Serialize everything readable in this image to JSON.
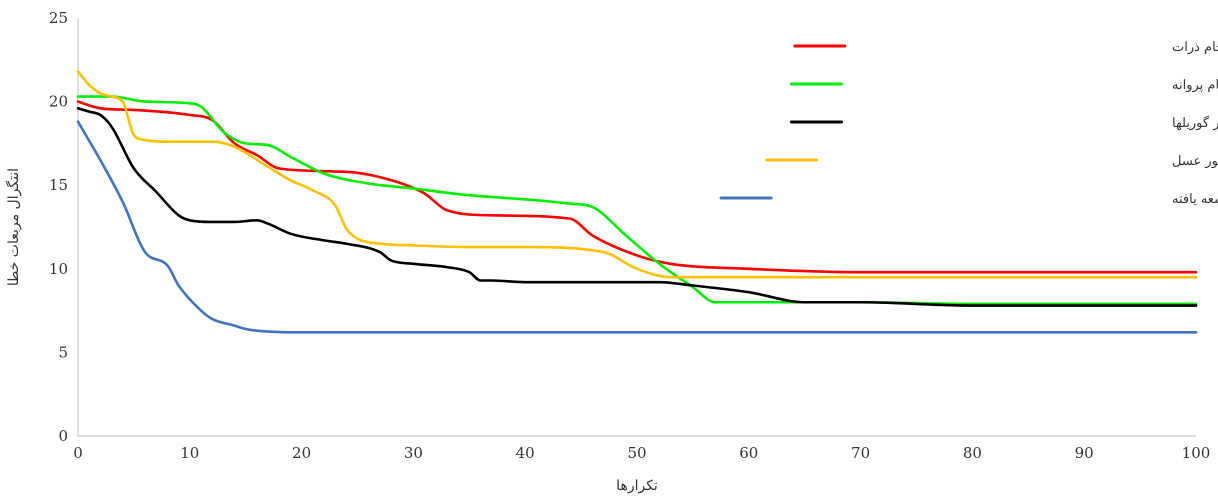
{
  "chart_data": {
    "type": "line",
    "title": "",
    "xlabel": "تکرارها",
    "ylabel": "انتگرال مربعات خطا",
    "xlim": [
      0,
      100
    ],
    "ylim": [
      0,
      25
    ],
    "xticks": [
      0,
      10,
      20,
      30,
      40,
      50,
      60,
      70,
      80,
      90,
      100
    ],
    "yticks": [
      0,
      5,
      10,
      15,
      20,
      25
    ],
    "grid": false,
    "legend_position": "top-right",
    "series": [
      {
        "name": "کنترل کننده  PD-FOPIDبهینه شده با الگوریتم ازدحام ذرات",
        "color": "#ff0000",
        "x": [
          0,
          2,
          5,
          10,
          12,
          14,
          16,
          18,
          24,
          28,
          31,
          33,
          37,
          44,
          46,
          50,
          53,
          60,
          70,
          80,
          90,
          100
        ],
        "y": [
          20.0,
          19.6,
          19.5,
          19.2,
          18.9,
          17.5,
          16.8,
          16.0,
          15.8,
          15.3,
          14.5,
          13.5,
          13.2,
          13.0,
          12.0,
          10.8,
          10.3,
          10.0,
          9.8,
          9.8,
          9.8,
          9.8
        ]
      },
      {
        "name": "کنترل کننده  PD-FOPIDبهینه شده با الگوریتم ازدحام پروانه",
        "color": "#00ee00",
        "x": [
          0,
          3,
          6,
          10,
          11,
          13,
          15,
          17,
          19,
          22,
          26,
          30,
          35,
          41,
          44,
          46,
          49,
          52,
          55,
          57,
          60,
          70,
          80,
          90,
          100
        ],
        "y": [
          20.3,
          20.3,
          20.0,
          19.9,
          19.7,
          18.2,
          17.5,
          17.4,
          16.7,
          15.7,
          15.1,
          14.8,
          14.4,
          14.1,
          13.9,
          13.7,
          12.0,
          10.3,
          8.9,
          8.0,
          8.0,
          8.0,
          7.9,
          7.9,
          7.9
        ]
      },
      {
        "name": "کنترل کننده  PD-FOPIDبهینه شده با الگوریتم لشکر گوریلها",
        "color": "#000000",
        "x": [
          0,
          1,
          2,
          3,
          5,
          7,
          9,
          10,
          12,
          14,
          16,
          17,
          19,
          22,
          24,
          27,
          28,
          30,
          33,
          35,
          36,
          37,
          40,
          45,
          52,
          55,
          60,
          65,
          70,
          80,
          90,
          100
        ],
        "y": [
          19.6,
          19.4,
          19.2,
          18.5,
          16.0,
          14.6,
          13.2,
          12.9,
          12.8,
          12.8,
          12.9,
          12.7,
          12.1,
          11.7,
          11.5,
          11.0,
          10.5,
          10.3,
          10.1,
          9.8,
          9.3,
          9.3,
          9.2,
          9.2,
          9.2,
          9.0,
          8.6,
          8.0,
          8.0,
          7.8,
          7.8,
          7.8
        ]
      },
      {
        "name": "کنترل کننده  PD-FOPIDبهینه شده با الگوریتم کلونی زنبور عسل",
        "color": "#ffc000",
        "x": [
          0,
          1,
          2,
          3,
          4,
          5,
          6,
          8,
          12,
          14,
          17,
          19,
          21,
          23,
          24,
          25,
          27,
          30,
          35,
          40,
          47,
          50,
          53,
          60,
          70,
          80,
          90,
          100
        ],
        "y": [
          21.8,
          21.0,
          20.5,
          20.3,
          20.0,
          18.0,
          17.7,
          17.6,
          17.6,
          17.3,
          16.1,
          15.3,
          14.7,
          13.8,
          12.4,
          11.8,
          11.5,
          11.4,
          11.3,
          11.3,
          11.0,
          10.0,
          9.5,
          9.5,
          9.5,
          9.5,
          9.5,
          9.5
        ]
      },
      {
        "name": "کنترل کننده  PD-FOPIDبهینه شده با الگوریتم جستجوی جغد توسعه یافته",
        "color": "#4472c4",
        "x": [
          0,
          2,
          4,
          6,
          8,
          9,
          11,
          12,
          14,
          15,
          16,
          20,
          30,
          40,
          50,
          60,
          70,
          80,
          90,
          100
        ],
        "y": [
          18.8,
          16.5,
          14.0,
          11.0,
          10.2,
          9.0,
          7.5,
          7.0,
          6.6,
          6.4,
          6.3,
          6.2,
          6.2,
          6.2,
          6.2,
          6.2,
          6.2,
          6.2,
          6.2,
          6.2
        ]
      }
    ]
  }
}
